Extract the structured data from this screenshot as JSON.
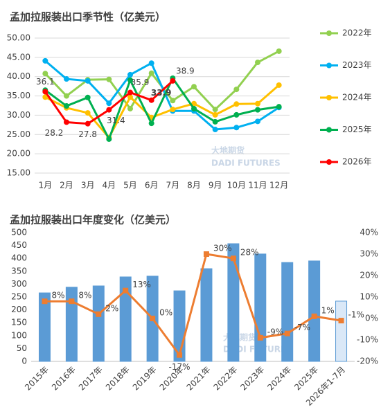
{
  "chart_data": [
    {
      "type": "line",
      "title": "孟加拉服装出口季节性（亿美元）",
      "categories": [
        "1月",
        "2月",
        "3月",
        "4月",
        "5月",
        "6月",
        "7月",
        "8月",
        "9月",
        "10月",
        "11月",
        "12月"
      ],
      "ylim": [
        15,
        50
      ],
      "yticks": [
        {
          "value": 15,
          "label": "15.00"
        },
        {
          "value": 20,
          "label": "20.00"
        },
        {
          "value": 25,
          "label": "25.00"
        },
        {
          "value": 30,
          "label": "30.00"
        },
        {
          "value": 35,
          "label": "35.00"
        },
        {
          "value": 40,
          "label": "40.00"
        },
        {
          "value": 45,
          "label": "45.00"
        },
        {
          "value": 50,
          "label": "50.00"
        }
      ],
      "grid": true,
      "legend": "right",
      "series": [
        {
          "name": "2022年",
          "color": "#92d050",
          "values": [
            40.8,
            35.0,
            39.2,
            39.3,
            31.7,
            40.9,
            33.8,
            37.4,
            31.5,
            36.7,
            43.7,
            46.6
          ]
        },
        {
          "name": "2023年",
          "color": "#00b0f0",
          "values": [
            44.1,
            39.4,
            38.9,
            33.1,
            40.5,
            43.5,
            31.1,
            31.1,
            26.3,
            26.8,
            28.4,
            32.0
          ]
        },
        {
          "name": "2024年",
          "color": "#ffc000",
          "values": [
            34.7,
            31.9,
            30.6,
            24.2,
            34.7,
            29.4,
            31.5,
            33.0,
            30.1,
            32.9,
            33.0,
            37.8
          ]
        },
        {
          "name": "2025年",
          "color": "#00b050",
          "values": [
            36.5,
            32.4,
            34.6,
            23.8,
            39.1,
            27.9,
            39.6,
            31.7,
            28.3,
            30.1,
            31.4,
            32.2
          ]
        },
        {
          "name": "2026年",
          "color": "#ff0000",
          "values": [
            36.1,
            28.2,
            27.8,
            31.4,
            35.9,
            33.9,
            38.9,
            null,
            null,
            null,
            null,
            null
          ],
          "data_labels": true
        }
      ]
    },
    {
      "type": "bar_line",
      "title": "孟加拉服装出口年度变化（亿美元）",
      "categories": [
        "2015年",
        "2016年",
        "2017年",
        "2018年",
        "2019年",
        "2020年",
        "2021年",
        "2022年",
        "2023年",
        "2024年",
        "2025年",
        "2026年1-7月"
      ],
      "ylim": [
        0,
        500
      ],
      "yticks": [
        0,
        50,
        100,
        150,
        200,
        250,
        300,
        350,
        400,
        450,
        500
      ],
      "y2lim": [
        -20,
        40
      ],
      "y2ticks": [
        {
          "value": -20,
          "label": "-20%"
        },
        {
          "value": -10,
          "label": "-10%"
        },
        {
          "value": 0,
          "label": "0%"
        },
        {
          "value": 10,
          "label": "10%"
        },
        {
          "value": 20,
          "label": "20%"
        },
        {
          "value": 30,
          "label": "30%"
        },
        {
          "value": 40,
          "label": "40%"
        }
      ],
      "grid": false,
      "series": [
        {
          "type": "bar",
          "color": "#5b9bd5",
          "colors": [
            "#5b9bd5",
            "#5b9bd5",
            "#5b9bd5",
            "#5b9bd5",
            "#5b9bd5",
            "#5b9bd5",
            "#5b9bd5",
            "#5b9bd5",
            "#5b9bd5",
            "#5b9bd5",
            "#5b9bd5",
            "#dae8f7"
          ],
          "values": [
            266,
            288,
            293,
            328,
            331,
            274,
            360,
            457,
            417,
            384,
            390,
            234
          ]
        },
        {
          "type": "line",
          "axis": "y2",
          "color": "#ed7d31",
          "values": [
            8,
            8,
            2,
            13,
            0,
            -17,
            30,
            28,
            -9,
            -7,
            1,
            -1
          ],
          "value_labels": [
            "8%",
            "8%",
            "2%",
            "13%",
            "0%",
            "-17%",
            "30%",
            "28%",
            "-9%",
            "-7%",
            "1%",
            "-1%"
          ]
        }
      ]
    }
  ],
  "watermark": {
    "cn": "大地期货",
    "en": "DADI FUTURES"
  }
}
